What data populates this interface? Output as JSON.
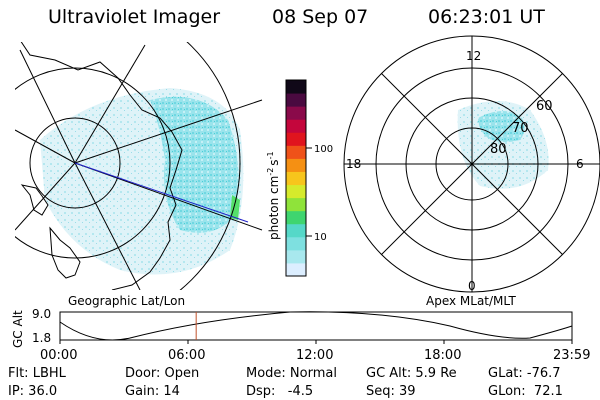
{
  "header": {
    "title": "Ultraviolet Imager",
    "date": "08 Sep 07",
    "time": "06:23:01 UT"
  },
  "geo_panel": {
    "label": "Geographic Lat/Lon"
  },
  "colorbar": {
    "label": "photon cm",
    "label_exp": "-2",
    "label_s": "s",
    "label_s_exp": "-1",
    "ticks": [
      "100",
      "10"
    ],
    "stops": [
      "#dceeff",
      "#a8e8ee",
      "#7ee0e0",
      "#55d8c8",
      "#3fd56f",
      "#8fe33a",
      "#d6ea2c",
      "#f7c51c",
      "#f59013",
      "#ef5219",
      "#e0141e",
      "#c4063c",
      "#8a0a4a",
      "#4a0a40",
      "#100818"
    ]
  },
  "polar_panel": {
    "label": "Apex MLat/MLT",
    "mlt_labels": [
      "12",
      "18",
      "6",
      "0"
    ],
    "lat_labels": [
      "60",
      "70",
      "80"
    ]
  },
  "altitude_strip": {
    "ylabel": "GC Alt",
    "yticks": [
      "9.0",
      "1.8"
    ],
    "xticks": [
      "00:00",
      "06:00",
      "12:00",
      "18:00",
      "23:59"
    ],
    "current_time_hours": 6.383
  },
  "footer": {
    "row1": [
      {
        "key": "filter",
        "text": "Flt: LBHL"
      },
      {
        "key": "door",
        "text": "Door: Open"
      },
      {
        "key": "mode",
        "text": "Mode: Normal"
      },
      {
        "key": "gcalt",
        "text": "GC Alt: 5.9 Re"
      },
      {
        "key": "glat",
        "text": "GLat: -76.7"
      }
    ],
    "row2": [
      {
        "key": "ip",
        "text": "IP: 36.0"
      },
      {
        "key": "gain",
        "text": "Gain: 14"
      },
      {
        "key": "dsp",
        "text": "Dsp:   -4.5"
      },
      {
        "key": "seq",
        "text": "Seq: 39"
      },
      {
        "key": "glon",
        "text": "GLon:  72.1"
      }
    ]
  },
  "colors": {
    "aurora_main": "#7fe0e8",
    "aurora_faint": "#c9eef6",
    "aurora_bright": "#3fd2d2",
    "track_line": "#2020c8",
    "marker_line": "#c0502a"
  }
}
